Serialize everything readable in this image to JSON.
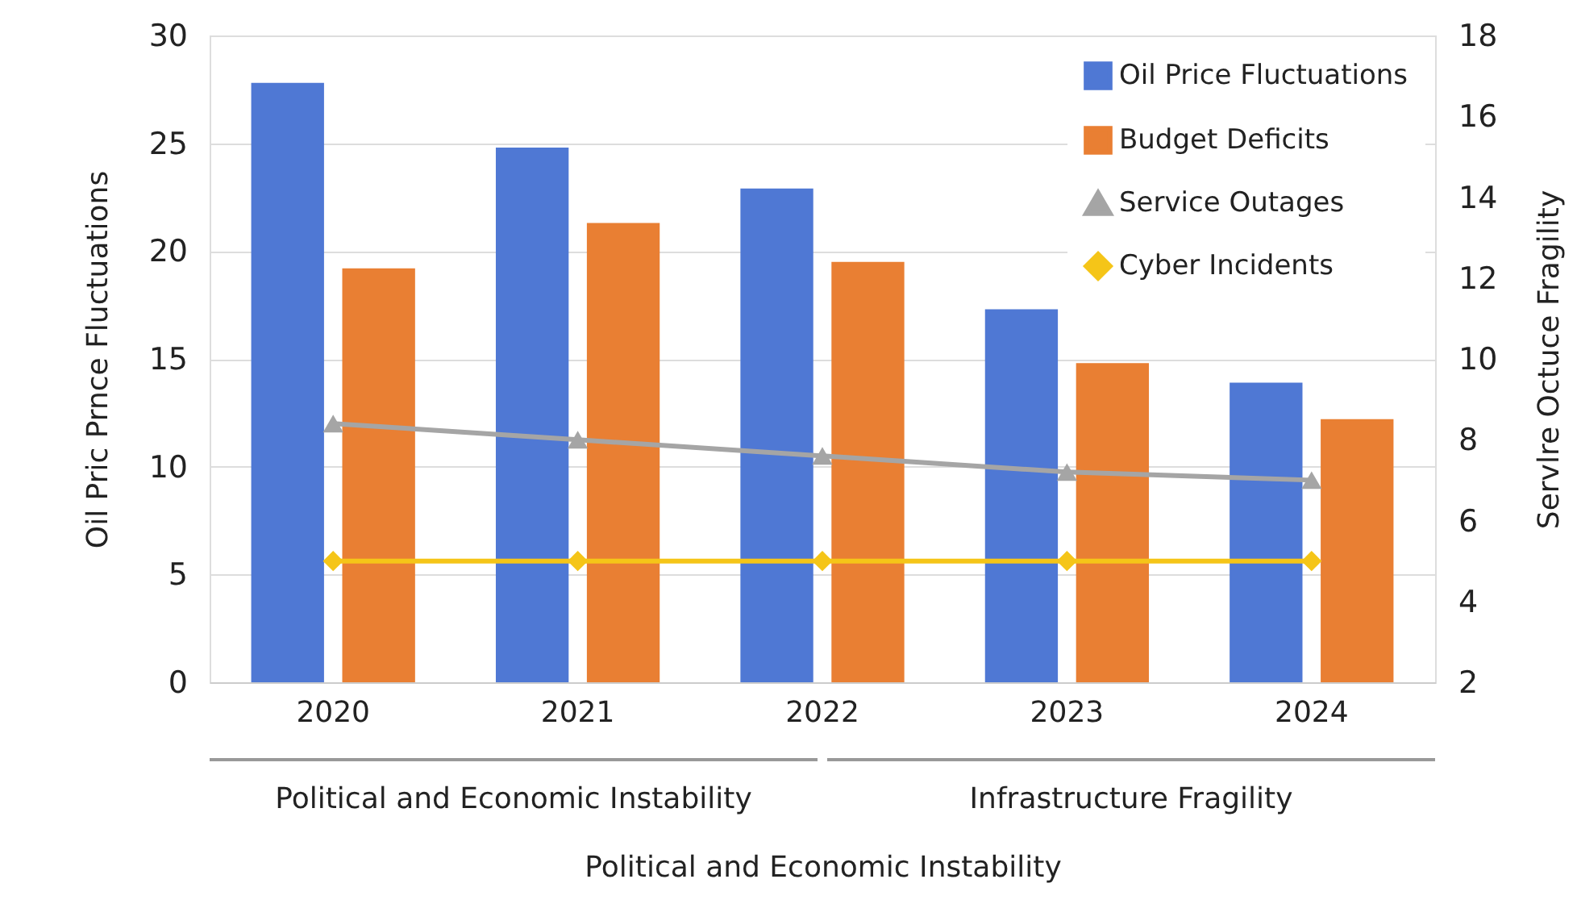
{
  "chart_data": {
    "type": "bar",
    "xlabel": "Political and Economic Instability",
    "ylabel": "Oil Pric Prnce Fluctuations",
    "y2label": "Servlre Octuce Fragility",
    "categories": [
      "2020",
      "2021",
      "2022",
      "2023",
      "2024"
    ],
    "series": [
      {
        "name": "Oil Price Fluctuations",
        "type": "bar",
        "color": "#4f78d4",
        "values": [
          27.8,
          24.8,
          22.9,
          17.3,
          13.9
        ]
      },
      {
        "name": "Budget Deficits",
        "type": "bar",
        "color": "#e97f33",
        "values": [
          19.2,
          21.3,
          19.5,
          14.8,
          12.2
        ]
      },
      {
        "name": "Service Outages",
        "type": "line",
        "axis": "y2",
        "marker": "triangle",
        "color": "#a5a5a5",
        "values": [
          8.4,
          8.0,
          7.6,
          7.2,
          7.0
        ]
      },
      {
        "name": "Cyber Incidents",
        "type": "line",
        "axis": "y2",
        "marker": "diamond",
        "color": "#f5c518",
        "values": [
          5.0,
          5.0,
          5.0,
          5.0,
          5.0
        ]
      }
    ],
    "ylim": [
      0,
      30
    ],
    "yticks": [
      0,
      5,
      10,
      15,
      20,
      25,
      30
    ],
    "y2lim": [
      2,
      18
    ],
    "y2ticks": [
      2,
      4,
      6,
      8,
      10,
      12,
      14,
      16,
      18
    ],
    "annotations": [
      "Political and Economic Instability",
      "Infrastructure Fragility"
    ],
    "grid": "y",
    "legend": "top right"
  }
}
